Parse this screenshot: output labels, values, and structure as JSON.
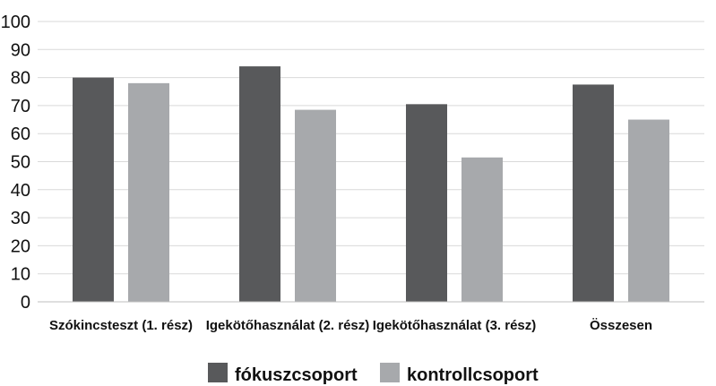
{
  "chart_data": {
    "type": "bar",
    "title": "",
    "xlabel": "",
    "ylabel": "",
    "ylim": [
      0,
      100
    ],
    "yticks": [
      0,
      10,
      20,
      30,
      40,
      50,
      60,
      70,
      80,
      90,
      100
    ],
    "grid": true,
    "legend_position": "bottom",
    "categories": [
      "Szókincsteszt (1. rész)",
      "Igekötőhasználat (2. rész)",
      "Igekötőhasználat (3. rész)",
      "Összesen"
    ],
    "series": [
      {
        "name": "fókuszcsoport",
        "color": "#58595b",
        "values": [
          80,
          84,
          70.5,
          77.5
        ]
      },
      {
        "name": "kontrollcsoport",
        "color": "#a7a9ac",
        "values": [
          78,
          68.5,
          51.5,
          65
        ]
      }
    ]
  }
}
